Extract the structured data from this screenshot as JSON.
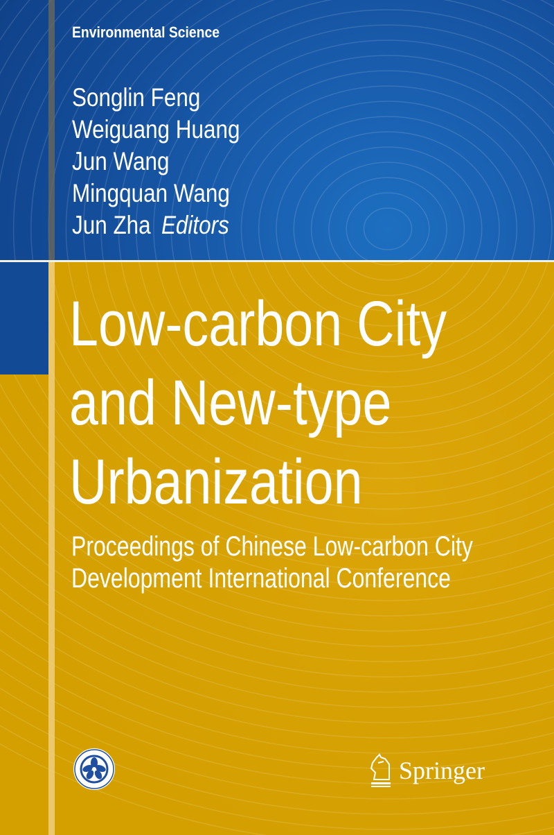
{
  "series": "Environmental Science",
  "authors": [
    "Songlin Feng",
    "Weiguang Huang",
    "Jun Wang",
    "Mingquan Wang",
    "Jun Zha"
  ],
  "editors_label": "Editors",
  "title_lines": [
    "Low-carbon City",
    "and New-type",
    "Urbanization"
  ],
  "subtitle_lines": [
    "Proceedings of Chinese Low-carbon City",
    "Development International Conference"
  ],
  "publisher": "Springer",
  "colors": {
    "blue": "#134c98",
    "gold": "#d4a000",
    "text": "#ffffff"
  },
  "icons": {
    "institution_logo": "flower-seal-logo",
    "publisher_logo": "chess-knight-logo"
  }
}
